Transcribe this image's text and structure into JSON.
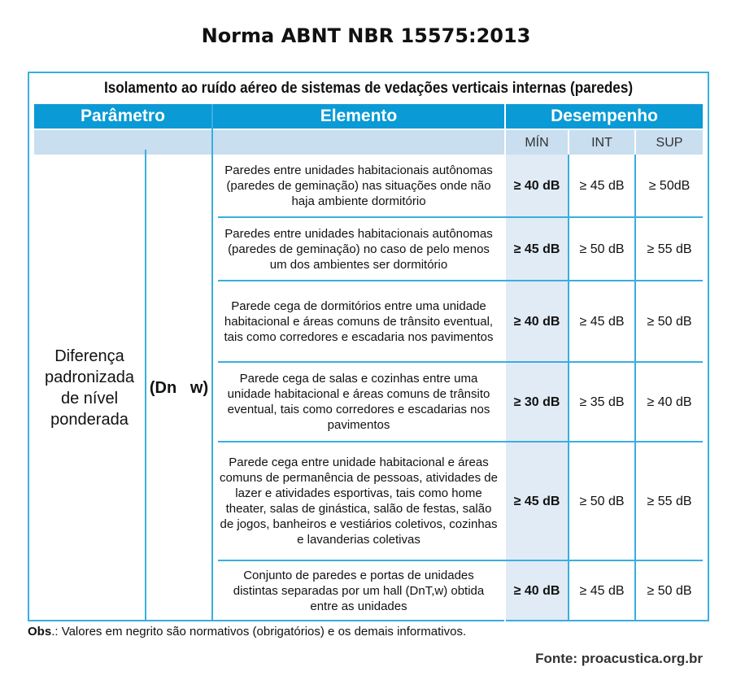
{
  "title": "Norma ABNT NBR 15575:2013",
  "table": {
    "caption": "Isolamento ao ruído aéreo de sistemas de vedações verticais internas (paredes)",
    "headers": {
      "parametro": "Parâmetro",
      "elemento": "Elemento",
      "desempenho": "Desempenho"
    },
    "levels": [
      "MÍN",
      "INT",
      "SUP"
    ],
    "parameter": "Diferença padronizada de nível ponderada",
    "symbol": "(Dn   w)",
    "rows": [
      {
        "elemento": "Paredes entre unidades habitacionais autônomas (paredes de geminação) nas situações onde não haja ambiente dormitório",
        "min": "≥ 40 dB",
        "int": "≥ 45 dB",
        "sup": "≥ 50dB"
      },
      {
        "elemento": "Paredes entre unidades habitacionais autônomas (paredes de geminação) no caso de pelo menos um dos ambientes ser dormitório",
        "min": "≥ 45 dB",
        "int": "≥ 50 dB",
        "sup": "≥ 55 dB"
      },
      {
        "elemento": "Parede cega de dormitórios entre uma unidade habitacional e áreas comuns de trânsito eventual, tais como corredores e escadaria nos pavimentos",
        "min": "≥ 40 dB",
        "int": "≥ 45 dB",
        "sup": "≥ 50 dB"
      },
      {
        "elemento": "Parede cega de salas e cozinhas entre uma unidade habitacional e áreas comuns de trânsito eventual, tais como corredores e escadarias nos pavimentos",
        "min": "≥ 30 dB",
        "int": "≥ 35 dB",
        "sup": "≥ 40 dB"
      },
      {
        "elemento": "Parede cega entre unidade habitacional e áreas comuns de permanência de pessoas, atividades de lazer e atividades esportivas, tais como home theater, salas de ginástica, salão de festas, salão de jogos, banheiros e vestiários coletivos, cozinhas e lavanderias coletivas",
        "min": "≥ 45 dB",
        "int": "≥ 50 dB",
        "sup": "≥ 55 dB"
      },
      {
        "elemento": "Conjunto de paredes e portas de unidades distintas separadas por um hall (DnT,w) obtida entre as unidades",
        "min": "≥ 40 dB",
        "int": "≥ 45 dB",
        "sup": "≥ 50 dB"
      }
    ]
  },
  "obs_label": "Obs",
  "obs_text": ".: Valores em negrito são normativos (obrigatórios) e os demais informativos.",
  "source": "Fonte: proacustica.org.br"
}
